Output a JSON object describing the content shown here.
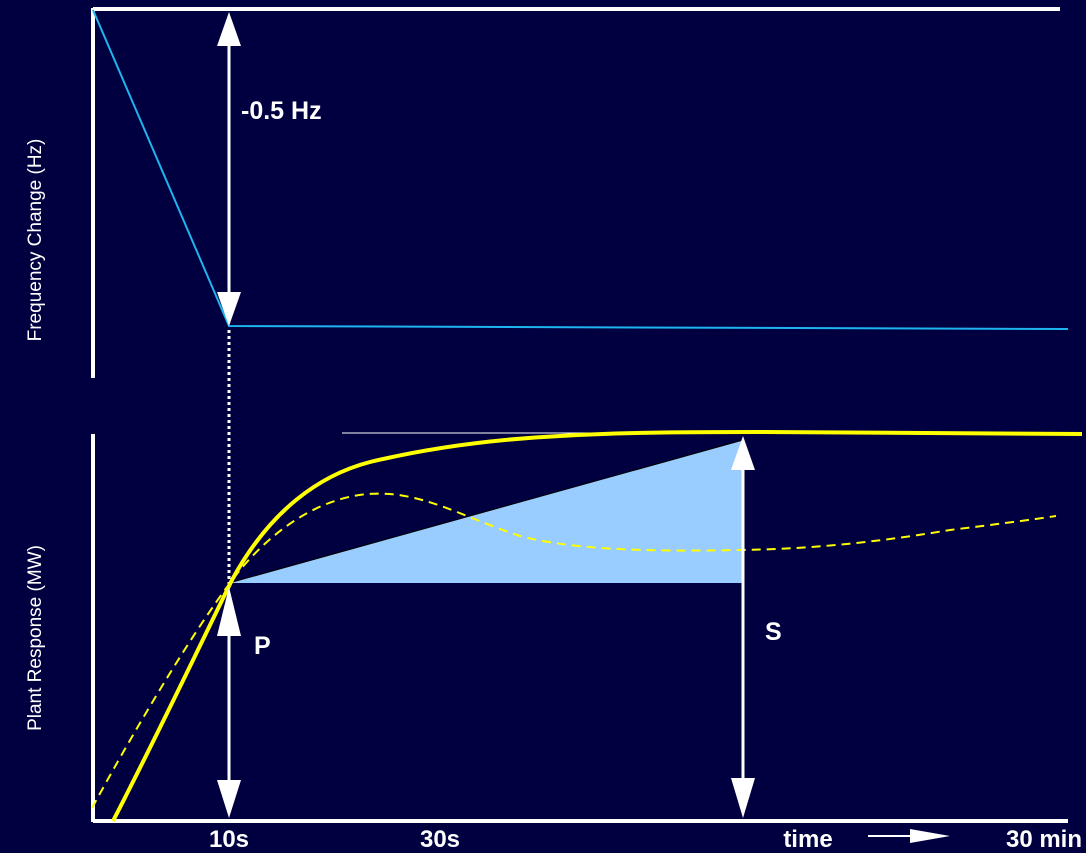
{
  "colors": {
    "background": "#000040",
    "axis": "#ffffff",
    "frequency_line": "#1eb4f0",
    "response_line": "#ffff00",
    "shaded_area": "#99ccff"
  },
  "labels": {
    "top_axis_title": "Frequency Change (Hz)",
    "bottom_axis_title": "Plant Response (MW)",
    "frequency_drop": "-0.5 Hz",
    "primary": "P",
    "secondary": "S",
    "tick_10s": "10s",
    "tick_30s": "30s",
    "time": "time",
    "tick_30min": "30 min"
  }
}
